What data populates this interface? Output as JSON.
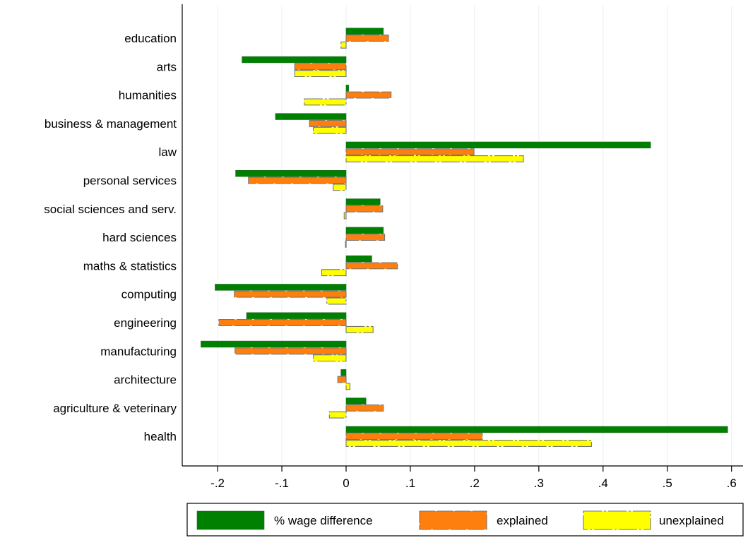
{
  "chart_data": {
    "type": "bar",
    "orientation": "horizontal",
    "categories": [
      "education",
      "arts",
      "humanities",
      "business & management",
      "law",
      "personal services",
      "social sciences and serv.",
      "hard sciences",
      "maths & statistics",
      "computing",
      "engineering",
      "manufacturing",
      "architecture",
      "agriculture & veterinary",
      "health"
    ],
    "series": [
      {
        "name": "% wage difference",
        "color": "#008000",
        "style": "solid",
        "values": [
          0.058,
          -0.162,
          0.004,
          -0.11,
          0.474,
          -0.172,
          0.053,
          0.058,
          0.04,
          -0.204,
          -0.155,
          -0.226,
          -0.008,
          0.031,
          0.594
        ]
      },
      {
        "name": "explained",
        "color": "#ff7f0e",
        "style": "dashed",
        "values": [
          0.066,
          -0.08,
          0.07,
          -0.057,
          0.199,
          -0.152,
          0.057,
          0.06,
          0.08,
          -0.174,
          -0.198,
          -0.173,
          -0.013,
          0.058,
          0.212
        ]
      },
      {
        "name": "unexplained",
        "color": "#ffff00",
        "style": "dashdot",
        "values": [
          -0.008,
          -0.08,
          -0.065,
          -0.051,
          0.276,
          -0.02,
          -0.003,
          -0.001,
          -0.038,
          -0.03,
          0.042,
          -0.051,
          0.006,
          -0.026,
          0.382
        ]
      }
    ],
    "x_ticks": [
      -0.2,
      -0.1,
      0,
      0.1,
      0.2,
      0.3,
      0.4,
      0.5,
      0.6
    ],
    "x_tick_labels": [
      "-.2",
      "-.1",
      "0",
      ".1",
      ".2",
      ".3",
      ".4",
      ".5",
      ".6"
    ],
    "xlim": [
      -0.255,
      0.625
    ],
    "xlabel": "",
    "ylabel": "",
    "title": "",
    "grid": "vertical",
    "legend_position": "bottom"
  }
}
